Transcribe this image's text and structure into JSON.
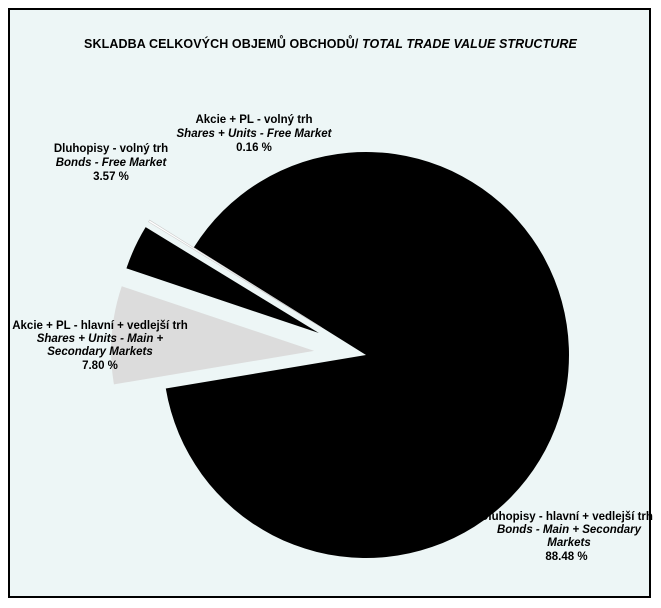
{
  "chart_data": {
    "type": "pie",
    "title_cz": "SKLADBA CELKOVÝCH OBJEMŮ OBCHODŮ/",
    "title_en": "TOTAL TRADE VALUE STRUCTURE",
    "slices": [
      {
        "label_cz": "Dluhopisy - hlavní + vedlejší trh",
        "label_en": "Bonds - Main + Secondary Markets",
        "value": 88.48,
        "value_text": "88.48 %",
        "color": "#000000",
        "exploded": false
      },
      {
        "label_cz": "Akcie + PL - hlavní + vedlejší trh",
        "label_en": "Shares + Units - Main + Secondary Markets",
        "value": 7.8,
        "value_text": "7.80 %",
        "color": "#dcdcdc",
        "exploded": true
      },
      {
        "label_cz": "Dluhopisy - volný trh",
        "label_en": "Bonds - Free Market",
        "value": 3.57,
        "value_text": "3.57 %",
        "color": "#000000",
        "exploded": true
      },
      {
        "label_cz": "Akcie + PL - volný trh",
        "label_en": "Shares + Units - Free Market",
        "value": 0.16,
        "value_text": "0.16 %",
        "color": "#ffffff",
        "exploded": true
      }
    ]
  }
}
